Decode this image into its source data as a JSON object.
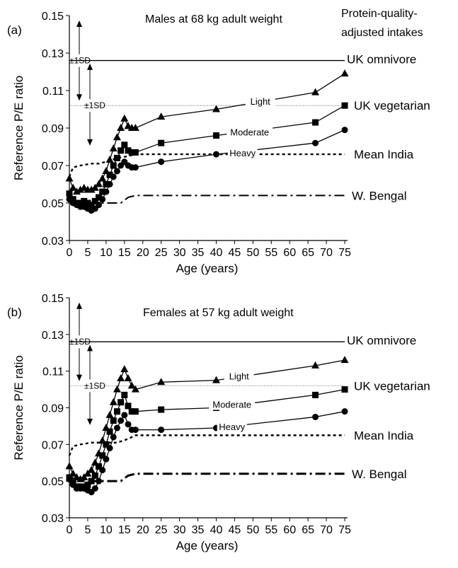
{
  "chart_data": [
    {
      "type": "line",
      "panel_label": "(a)",
      "title": "Males at 68 kg adult weight",
      "subtitle_lines": [
        "Protein-quality-",
        "adjusted intakes"
      ],
      "xlabel": "Age (years)",
      "ylabel": "Reference P/E ratio",
      "xlim": [
        0,
        75
      ],
      "ylim": [
        0.03,
        0.15
      ],
      "x_ticks": [
        0,
        5,
        10,
        15,
        20,
        25,
        30,
        35,
        40,
        45,
        50,
        55,
        60,
        65,
        70,
        75
      ],
      "y_ticks": [
        0.03,
        0.05,
        0.07,
        0.09,
        0.11,
        0.13,
        0.15
      ],
      "x_tick_labels": [
        "0",
        "5",
        "10",
        "15",
        "20",
        "25",
        "30",
        "35",
        "40",
        "45",
        "50",
        "55",
        "60",
        "65",
        "70",
        "75"
      ],
      "y_tick_labels": [
        "0.03",
        "0.05",
        "0.07",
        "0.09",
        "0.11",
        "0.13",
        "0.15"
      ],
      "grid": false,
      "reference_lines": [
        {
          "name": "UK omnivore",
          "style": "solid",
          "x": [
            0,
            75
          ],
          "y": [
            0.126,
            0.126
          ]
        },
        {
          "name": "UK vegetarian",
          "style": "thin-dotted",
          "x": [
            0,
            75
          ],
          "y": [
            0.102,
            0.102
          ]
        },
        {
          "name": "Mean India",
          "style": "dotted",
          "x": [
            0,
            1,
            3,
            6,
            8,
            10,
            13,
            16,
            18,
            20,
            75
          ],
          "y": [
            0.064,
            0.069,
            0.07,
            0.071,
            0.071,
            0.072,
            0.074,
            0.075,
            0.076,
            0.076,
            0.076
          ]
        },
        {
          "name": "W. Bengal",
          "style": "dash-dot",
          "x": [
            0,
            2,
            5,
            8,
            11,
            14,
            16,
            18,
            20,
            75
          ],
          "y": [
            0.052,
            0.051,
            0.05,
            0.05,
            0.05,
            0.05,
            0.053,
            0.054,
            0.054,
            0.054
          ]
        }
      ],
      "sd_annotations": [
        {
          "label": "±1SD",
          "center": 0.126,
          "y_top": 0.147,
          "y_bottom": 0.105
        },
        {
          "label": "±1SD",
          "center": 0.102,
          "y_top": 0.124,
          "y_bottom": 0.081
        }
      ],
      "series": [
        {
          "name": "Light",
          "marker": "triangle",
          "x": [
            0,
            1,
            2,
            3,
            4,
            5,
            6,
            7,
            8,
            9,
            10,
            11,
            12,
            13,
            14,
            15,
            16,
            17,
            18,
            25,
            40,
            67,
            75
          ],
          "y": [
            0.063,
            0.058,
            0.056,
            0.057,
            0.058,
            0.057,
            0.057,
            0.058,
            0.06,
            0.063,
            0.067,
            0.073,
            0.079,
            0.085,
            0.09,
            0.095,
            0.091,
            0.09,
            0.09,
            0.096,
            0.1,
            0.109,
            0.119
          ]
        },
        {
          "name": "Moderate",
          "marker": "square",
          "x": [
            0,
            1,
            2,
            3,
            4,
            5,
            6,
            7,
            8,
            9,
            10,
            11,
            12,
            13,
            14,
            15,
            16,
            17,
            18,
            25,
            40,
            67,
            75
          ],
          "y": [
            0.055,
            0.052,
            0.05,
            0.05,
            0.051,
            0.05,
            0.049,
            0.051,
            0.053,
            0.056,
            0.06,
            0.065,
            0.07,
            0.074,
            0.078,
            0.081,
            0.078,
            0.077,
            0.077,
            0.082,
            0.086,
            0.093,
            0.102
          ]
        },
        {
          "name": "Heavy",
          "marker": "circle",
          "x": [
            0,
            1,
            2,
            3,
            4,
            5,
            6,
            7,
            8,
            9,
            10,
            11,
            12,
            13,
            14,
            15,
            16,
            17,
            18,
            25,
            40,
            67,
            75
          ],
          "y": [
            0.052,
            0.05,
            0.049,
            0.048,
            0.048,
            0.047,
            0.046,
            0.047,
            0.049,
            0.052,
            0.056,
            0.06,
            0.064,
            0.067,
            0.07,
            0.072,
            0.07,
            0.069,
            0.069,
            0.072,
            0.076,
            0.082,
            0.089
          ]
        }
      ]
    },
    {
      "type": "line",
      "panel_label": "(b)",
      "title": "Females at 57 kg adult weight",
      "xlabel": "Age (years)",
      "ylabel": "Reference P/E ratio",
      "xlim": [
        0,
        75
      ],
      "ylim": [
        0.03,
        0.15
      ],
      "x_ticks": [
        0,
        5,
        10,
        15,
        20,
        25,
        30,
        35,
        40,
        45,
        50,
        55,
        60,
        65,
        70,
        75
      ],
      "y_ticks": [
        0.03,
        0.05,
        0.07,
        0.09,
        0.11,
        0.13,
        0.15
      ],
      "x_tick_labels": [
        "0",
        "5",
        "10",
        "15",
        "20",
        "25",
        "30",
        "35",
        "40",
        "45",
        "50",
        "55",
        "60",
        "65",
        "70",
        "75"
      ],
      "y_tick_labels": [
        "0.03",
        "0.05",
        "0.07",
        "0.09",
        "0.11",
        "0.13",
        "0.15"
      ],
      "grid": false,
      "reference_lines": [
        {
          "name": "UK omnivore",
          "style": "solid",
          "x": [
            0,
            75
          ],
          "y": [
            0.126,
            0.126
          ]
        },
        {
          "name": "UK vegetarian",
          "style": "thin-dotted",
          "x": [
            0,
            75
          ],
          "y": [
            0.102,
            0.102
          ]
        },
        {
          "name": "Mean India",
          "style": "dotted",
          "x": [
            0,
            1,
            3,
            6,
            8,
            10,
            13,
            16,
            18,
            20,
            75
          ],
          "y": [
            0.064,
            0.069,
            0.07,
            0.071,
            0.071,
            0.071,
            0.071,
            0.073,
            0.075,
            0.075,
            0.075
          ]
        },
        {
          "name": "W. Bengal",
          "style": "dash-dot",
          "x": [
            0,
            2,
            5,
            8,
            11,
            14,
            16,
            18,
            20,
            75
          ],
          "y": [
            0.052,
            0.051,
            0.05,
            0.05,
            0.05,
            0.05,
            0.053,
            0.054,
            0.054,
            0.054
          ]
        }
      ],
      "sd_annotations": [
        {
          "label": "±1SD",
          "center": 0.126,
          "y_top": 0.147,
          "y_bottom": 0.105
        },
        {
          "label": "±1SD",
          "center": 0.102,
          "y_top": 0.124,
          "y_bottom": 0.081
        }
      ],
      "series": [
        {
          "name": "Light",
          "marker": "triangle",
          "x": [
            0,
            1,
            2,
            3,
            4,
            5,
            6,
            7,
            8,
            9,
            10,
            11,
            12,
            13,
            14,
            15,
            16,
            17,
            18,
            25,
            40,
            67,
            75
          ],
          "y": [
            0.058,
            0.054,
            0.052,
            0.051,
            0.052,
            0.054,
            0.056,
            0.06,
            0.065,
            0.072,
            0.079,
            0.086,
            0.093,
            0.1,
            0.106,
            0.111,
            0.106,
            0.102,
            0.1,
            0.104,
            0.105,
            0.113,
            0.116
          ]
        },
        {
          "name": "Moderate",
          "marker": "square",
          "x": [
            0,
            1,
            2,
            3,
            4,
            5,
            6,
            7,
            8,
            9,
            10,
            11,
            12,
            13,
            14,
            15,
            16,
            17,
            18,
            25,
            40,
            67,
            75
          ],
          "y": [
            0.052,
            0.049,
            0.047,
            0.047,
            0.047,
            0.048,
            0.05,
            0.053,
            0.058,
            0.064,
            0.07,
            0.077,
            0.083,
            0.088,
            0.093,
            0.097,
            0.091,
            0.088,
            0.088,
            0.089,
            0.09,
            0.097,
            0.1
          ]
        },
        {
          "name": "Heavy",
          "marker": "circle",
          "x": [
            0,
            1,
            2,
            3,
            4,
            5,
            6,
            7,
            8,
            9,
            10,
            11,
            12,
            13,
            14,
            15,
            16,
            17,
            18,
            25,
            40,
            67,
            75
          ],
          "y": [
            0.051,
            0.048,
            0.046,
            0.046,
            0.046,
            0.045,
            0.044,
            0.046,
            0.05,
            0.056,
            0.062,
            0.068,
            0.074,
            0.079,
            0.083,
            0.086,
            0.081,
            0.078,
            0.078,
            0.078,
            0.079,
            0.085,
            0.088
          ]
        }
      ]
    }
  ]
}
